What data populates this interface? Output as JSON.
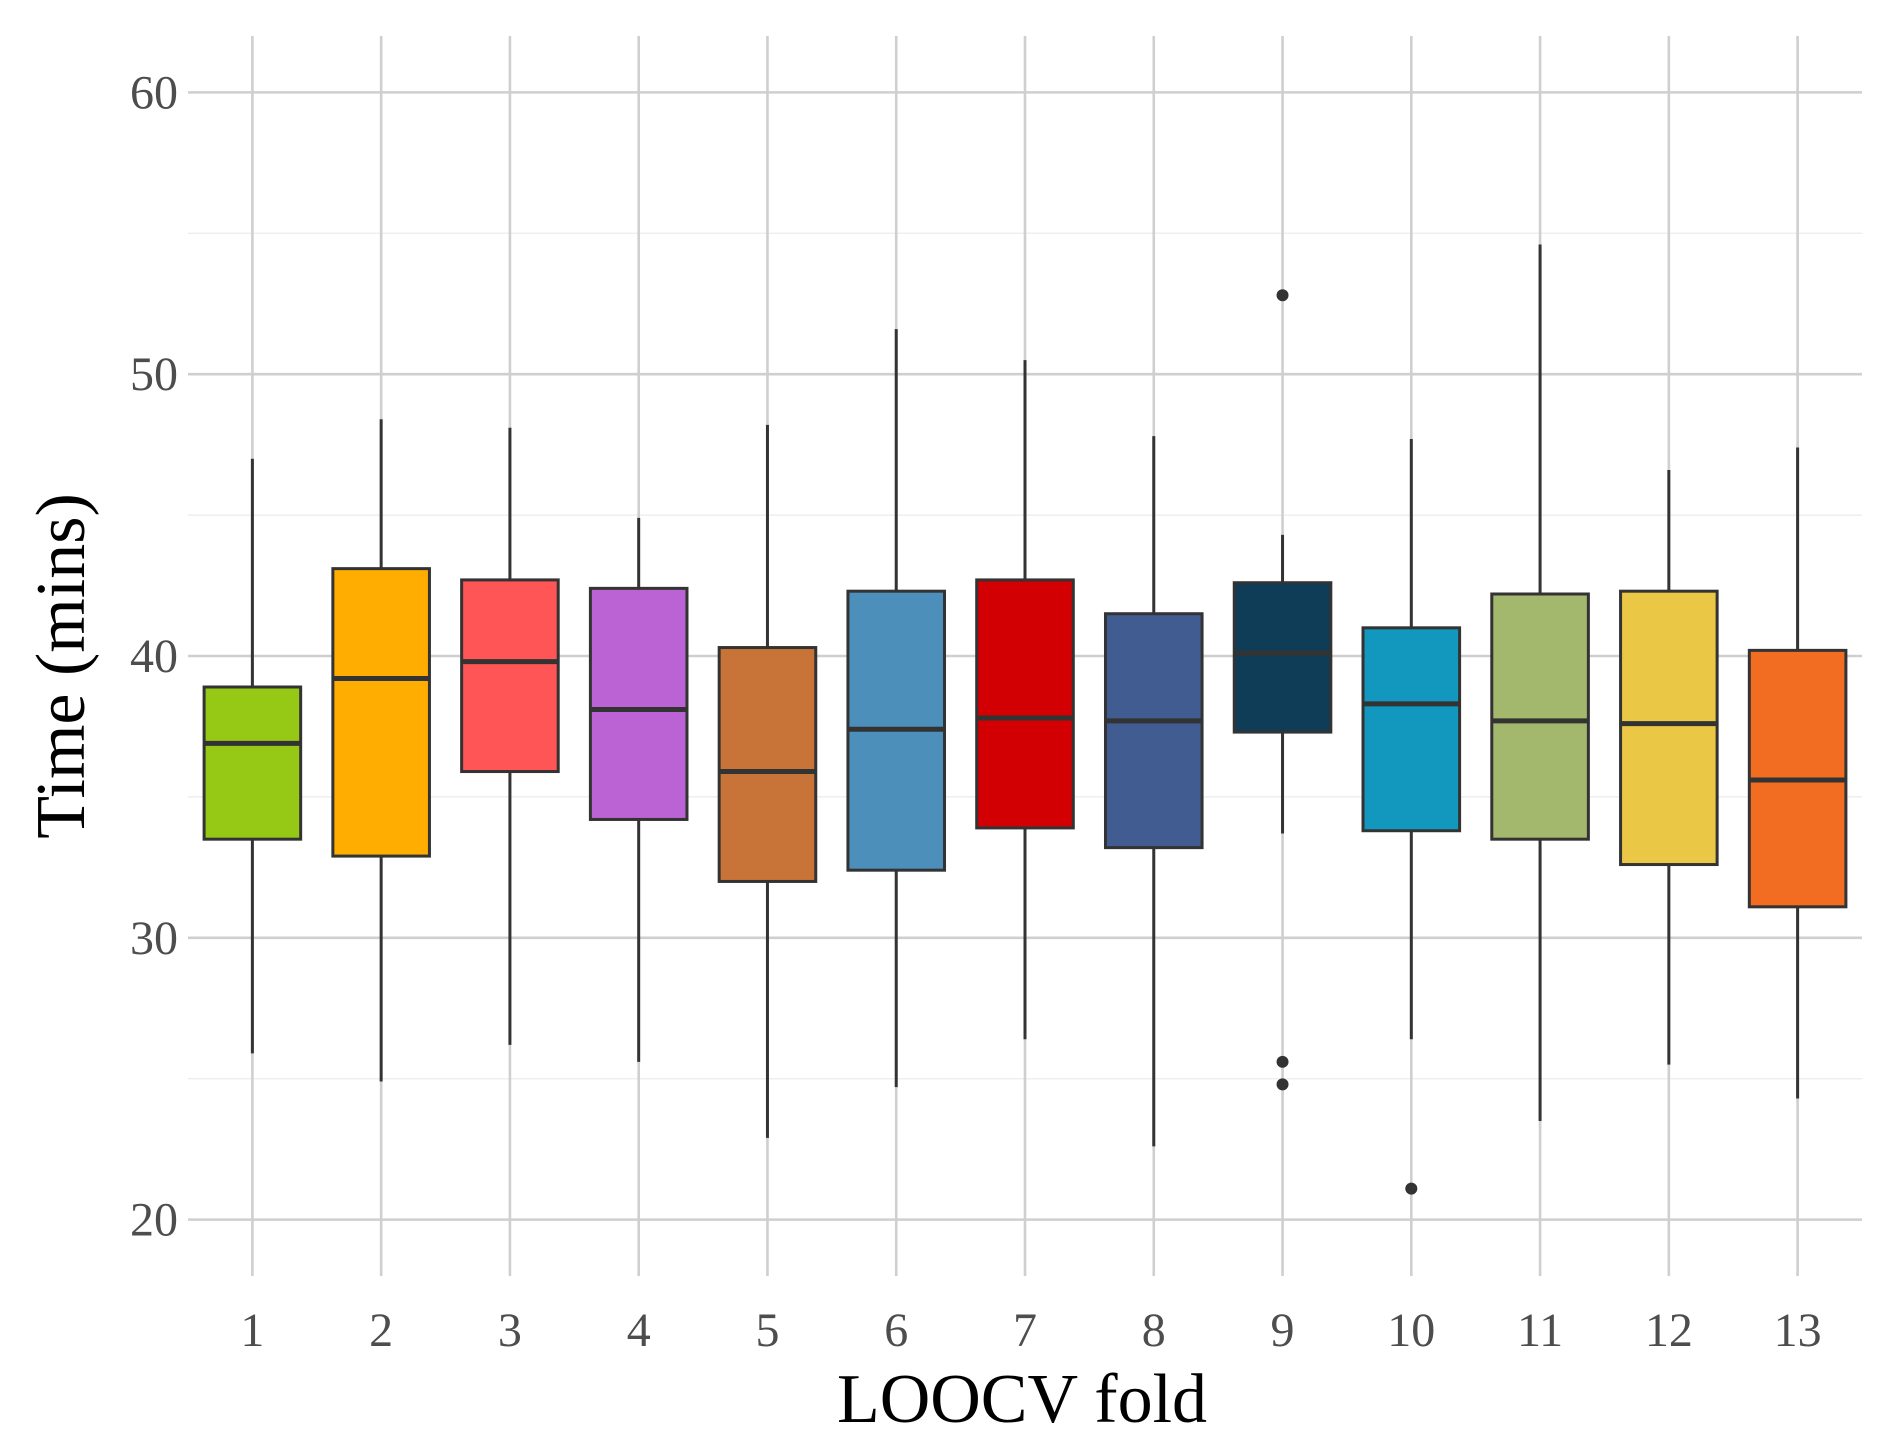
{
  "chart_data": {
    "type": "boxplot",
    "xlabel": "LOOCV fold",
    "ylabel": "Time (mins)",
    "ylim": [
      18,
      62
    ],
    "yticks": [
      20,
      30,
      40,
      50,
      60
    ],
    "grid": true,
    "legend": "none",
    "categories": [
      "1",
      "2",
      "3",
      "4",
      "5",
      "6",
      "7",
      "8",
      "9",
      "10",
      "11",
      "12",
      "13"
    ],
    "boxes": [
      {
        "fold": "1",
        "color": "#95C916",
        "whisker_low": 25.9,
        "q1": 33.5,
        "median": 36.9,
        "q3": 38.9,
        "whisker_high": 47.0,
        "outliers": []
      },
      {
        "fold": "2",
        "color": "#FFAD00",
        "whisker_low": 24.9,
        "q1": 32.9,
        "median": 39.2,
        "q3": 43.1,
        "whisker_high": 48.4,
        "outliers": []
      },
      {
        "fold": "3",
        "color": "#FF5557",
        "whisker_low": 26.2,
        "q1": 35.9,
        "median": 39.8,
        "q3": 42.7,
        "whisker_high": 48.1,
        "outliers": []
      },
      {
        "fold": "4",
        "color": "#BB62D4",
        "whisker_low": 25.6,
        "q1": 34.2,
        "median": 38.1,
        "q3": 42.4,
        "whisker_high": 44.9,
        "outliers": []
      },
      {
        "fold": "5",
        "color": "#C87337",
        "whisker_low": 22.9,
        "q1": 32.0,
        "median": 35.9,
        "q3": 40.3,
        "whisker_high": 48.2,
        "outliers": []
      },
      {
        "fold": "6",
        "color": "#4B8FBA",
        "whisker_low": 24.7,
        "q1": 32.4,
        "median": 37.4,
        "q3": 42.3,
        "whisker_high": 51.6,
        "outliers": []
      },
      {
        "fold": "7",
        "color": "#D20002",
        "whisker_low": 26.4,
        "q1": 33.9,
        "median": 37.8,
        "q3": 42.7,
        "whisker_high": 50.5,
        "outliers": []
      },
      {
        "fold": "8",
        "color": "#405C91",
        "whisker_low": 22.6,
        "q1": 33.2,
        "median": 37.7,
        "q3": 41.5,
        "whisker_high": 47.8,
        "outliers": []
      },
      {
        "fold": "9",
        "color": "#0F3D57",
        "whisker_low": 33.7,
        "q1": 37.3,
        "median": 40.1,
        "q3": 42.6,
        "whisker_high": 44.3,
        "outliers": [
          52.8,
          25.6,
          24.8
        ]
      },
      {
        "fold": "10",
        "color": "#1298BE",
        "whisker_low": 26.4,
        "q1": 33.8,
        "median": 38.3,
        "q3": 41.0,
        "whisker_high": 47.7,
        "outliers": [
          21.1
        ]
      },
      {
        "fold": "11",
        "color": "#A3B76D",
        "whisker_low": 23.5,
        "q1": 33.5,
        "median": 37.7,
        "q3": 42.2,
        "whisker_high": 54.6,
        "outliers": []
      },
      {
        "fold": "12",
        "color": "#EBC746",
        "whisker_low": 25.5,
        "q1": 32.6,
        "median": 37.6,
        "q3": 42.3,
        "whisker_high": 46.6,
        "outliers": []
      },
      {
        "fold": "13",
        "color": "#F26C21",
        "whisker_low": 24.3,
        "q1": 31.1,
        "median": 35.6,
        "q3": 40.2,
        "whisker_high": 47.4,
        "outliers": []
      }
    ]
  }
}
